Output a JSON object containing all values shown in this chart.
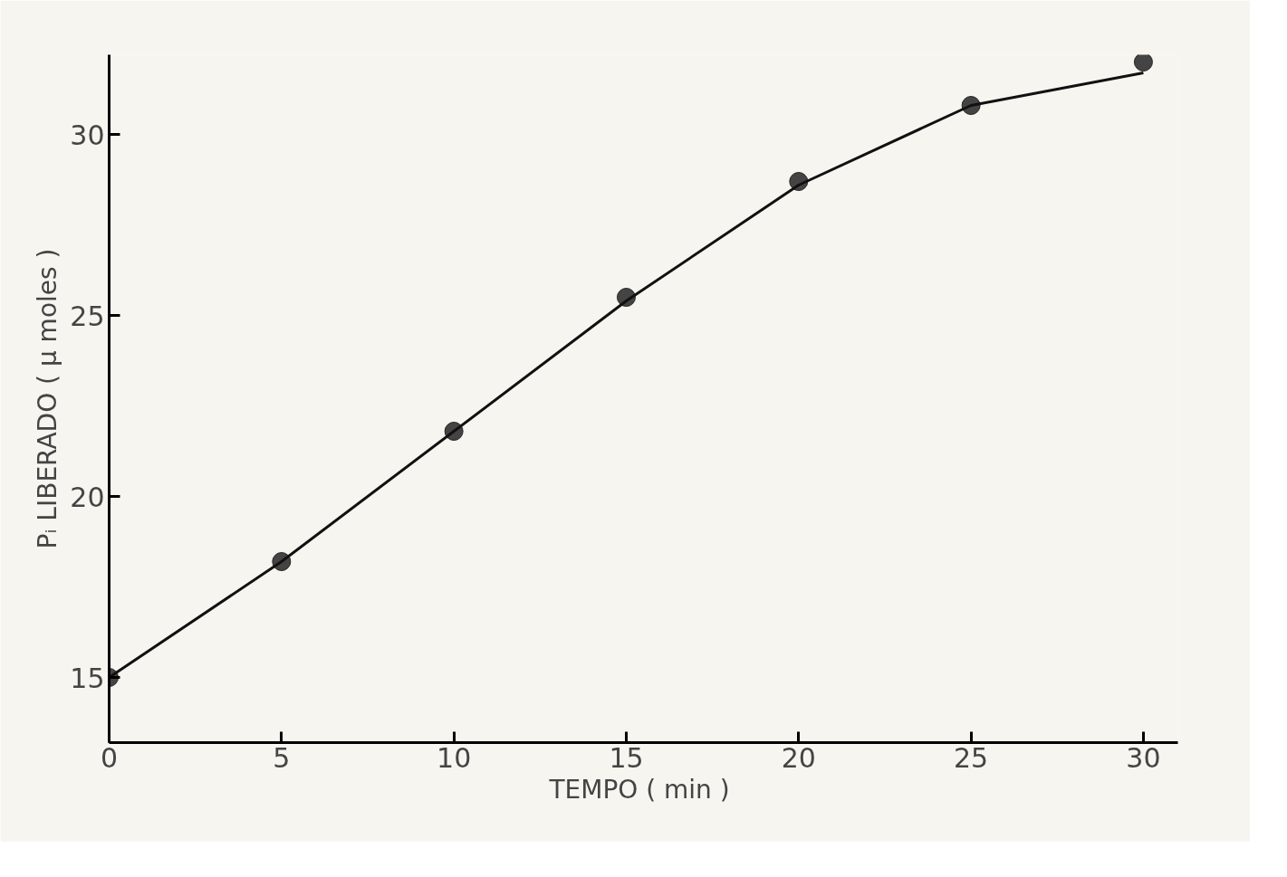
{
  "chart_data": {
    "type": "scatter",
    "xlabel": "TEMPO  ( min )",
    "ylabel": "Pᵢ LIBERADO ( μ moles )",
    "x": [
      0,
      5,
      10,
      15,
      20,
      25,
      30
    ],
    "series": [
      {
        "color": "#444444",
        "marker": "circle",
        "values": [
          15.0,
          18.2,
          21.8,
          25.5,
          28.7,
          30.8,
          32.0
        ]
      },
      {
        "type": "line",
        "color": "#111111",
        "marker": "none",
        "line_style": "solid",
        "values": [
          15.0,
          18.2,
          21.8,
          25.4,
          28.6,
          30.8,
          31.7
        ]
      }
    ],
    "xlim": [
      0,
      31
    ],
    "ylim": [
      13.2,
      32.2
    ],
    "xticks": [
      0,
      5,
      10,
      15,
      20,
      25,
      30
    ],
    "yticks": [
      15,
      20,
      25,
      30
    ],
    "grid": false
  }
}
